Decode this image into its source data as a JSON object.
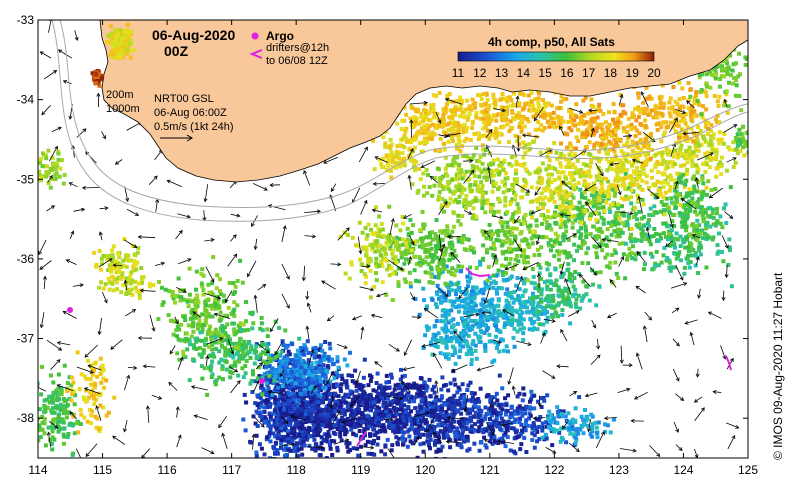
{
  "map": {
    "title_date": "06-Aug-2020",
    "title_time": "00Z",
    "argo_label": "Argo",
    "drifters_line1": "drifters@12h",
    "drifters_line2": "to 06/08 12Z",
    "colorbar_title": "4h comp, p50, All Sats",
    "colorbar_ticks": [
      "11",
      "12",
      "13",
      "14",
      "15",
      "16",
      "17",
      "18",
      "19",
      "20"
    ],
    "colorbar_range": [
      11,
      20
    ],
    "contour_200": "200m",
    "contour_1000": "1000m",
    "product_line1": "NRT00 GSL",
    "product_line2": "06-Aug 06:00Z",
    "scale_label": "0.5m/s (1kt 24h)",
    "credit": "© IMOS 09-Aug-2020 11:27 Hobart",
    "lon_ticks": [
      "114",
      "115",
      "116",
      "117",
      "118",
      "119",
      "120",
      "121",
      "122",
      "123",
      "124",
      "125"
    ],
    "lat_ticks": [
      "-33",
      "-34",
      "-35",
      "-36",
      "-37",
      "-38"
    ],
    "lon_range": [
      114,
      125
    ],
    "lat_range": [
      -38.5,
      -33
    ],
    "colors": {
      "land": "#f9c89a",
      "land_edge": "#000000",
      "argo": "#e020e0",
      "drifter": "#e020e0",
      "contour": "#a8a8a8"
    }
  }
}
